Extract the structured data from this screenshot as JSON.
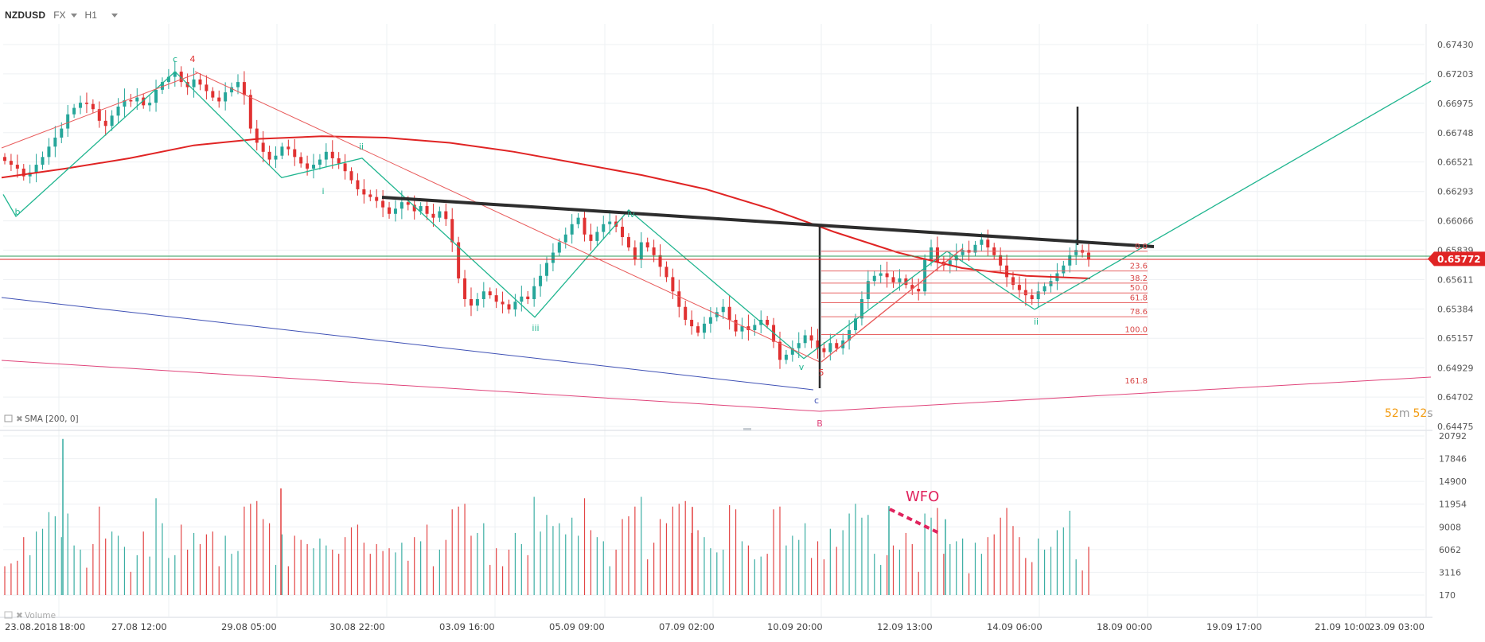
{
  "toolbar": {
    "symbol": "NZDUSD",
    "exchange": "FX",
    "timeframe": "H1"
  },
  "indicators": {
    "sma_label": "SMA",
    "sma_params": "[200, 0]",
    "volume_label": "Volume"
  },
  "timer": {
    "minutes": "52",
    "m": "m",
    "seconds": "52",
    "s": "s"
  },
  "annotations": {
    "wfo": "WFO"
  },
  "colors": {
    "up": "#26a69a",
    "down": "#e03131",
    "sma": "#e02424",
    "neckline": "#2d2d2d",
    "teal_line": "#1fb58f",
    "blue_line": "#3f51b5",
    "pink_line": "#e0457b",
    "price_tag": "#e02424",
    "current_line": "#2e9b5a"
  },
  "chart_data": {
    "type": "candlestick",
    "main": {
      "y_ticks": [
        "0.67430",
        "0.67203",
        "0.66975",
        "0.66748",
        "0.66521",
        "0.66293",
        "0.66066",
        "0.65839",
        "0.65611",
        "0.65384",
        "0.65157",
        "0.64929",
        "0.64702",
        "0.64475"
      ],
      "current_price": "0.65772",
      "x_labels": [
        "23.08.2018",
        "18:00",
        "27.08 12:00",
        "29.08 05:00",
        "30.08 22:00",
        "03.09 16:00",
        "05.09 09:00",
        "07.09 02:00",
        "10.09 20:00",
        "12.09 13:00",
        "14.09 06:00",
        "18.09 00:00",
        "19.09 17:00",
        "21.09 10:00",
        "23.09 03:00"
      ],
      "candles": [
        {
          "c": 0.6653
        },
        {
          "c": 0.665
        },
        {
          "c": 0.6647
        },
        {
          "c": 0.6641
        },
        {
          "c": 0.6644
        },
        {
          "c": 0.665
        },
        {
          "c": 0.6656
        },
        {
          "c": 0.6664
        },
        {
          "c": 0.6671
        },
        {
          "c": 0.6678
        },
        {
          "c": 0.6689
        },
        {
          "c": 0.6694
        },
        {
          "c": 0.6698
        },
        {
          "c": 0.6697
        },
        {
          "c": 0.6693
        },
        {
          "c": 0.6684
        },
        {
          "c": 0.668
        },
        {
          "c": 0.6688
        },
        {
          "c": 0.6695
        },
        {
          "c": 0.67
        },
        {
          "c": 0.6699
        },
        {
          "c": 0.6702
        },
        {
          "c": 0.6696
        },
        {
          "c": 0.6698
        },
        {
          "c": 0.6708
        },
        {
          "c": 0.6714
        },
        {
          "c": 0.6718
        },
        {
          "c": 0.6722
        },
        {
          "c": 0.6714
        },
        {
          "c": 0.671
        },
        {
          "c": 0.6716
        },
        {
          "c": 0.6712
        },
        {
          "c": 0.6707
        },
        {
          "c": 0.6702
        },
        {
          "c": 0.6699
        },
        {
          "c": 0.6706
        },
        {
          "c": 0.671
        },
        {
          "c": 0.6714
        },
        {
          "c": 0.6704
        },
        {
          "c": 0.6678
        },
        {
          "c": 0.6667
        },
        {
          "c": 0.666
        },
        {
          "c": 0.6654
        },
        {
          "c": 0.6657
        },
        {
          "c": 0.6664
        },
        {
          "c": 0.6662
        },
        {
          "c": 0.6656
        },
        {
          "c": 0.6651
        },
        {
          "c": 0.6647
        },
        {
          "c": 0.665
        },
        {
          "c": 0.6654
        },
        {
          "c": 0.666
        },
        {
          "c": 0.6655
        },
        {
          "c": 0.6651
        },
        {
          "c": 0.6645
        },
        {
          "c": 0.6638
        },
        {
          "c": 0.6631
        },
        {
          "c": 0.6627
        },
        {
          "c": 0.6625
        },
        {
          "c": 0.6622
        },
        {
          "c": 0.6617
        },
        {
          "c": 0.6612
        },
        {
          "c": 0.6616
        },
        {
          "c": 0.6621
        },
        {
          "c": 0.6619
        },
        {
          "c": 0.6614
        },
        {
          "c": 0.6618
        },
        {
          "c": 0.6612
        },
        {
          "c": 0.6609
        },
        {
          "c": 0.6614
        },
        {
          "c": 0.6608
        },
        {
          "c": 0.659
        },
        {
          "c": 0.6562
        },
        {
          "c": 0.6546
        },
        {
          "c": 0.6541
        },
        {
          "c": 0.6546
        },
        {
          "c": 0.6552
        },
        {
          "c": 0.6549
        },
        {
          "c": 0.6544
        },
        {
          "c": 0.6542
        },
        {
          "c": 0.6538
        },
        {
          "c": 0.6544
        },
        {
          "c": 0.6548
        },
        {
          "c": 0.6546
        },
        {
          "c": 0.6556
        },
        {
          "c": 0.6564
        },
        {
          "c": 0.6574
        },
        {
          "c": 0.6582
        },
        {
          "c": 0.659
        },
        {
          "c": 0.6596
        },
        {
          "c": 0.6604
        },
        {
          "c": 0.6609
        },
        {
          "c": 0.6596
        },
        {
          "c": 0.6591
        },
        {
          "c": 0.6598
        },
        {
          "c": 0.6604
        },
        {
          "c": 0.6606
        },
        {
          "c": 0.6602
        },
        {
          "c": 0.6594
        },
        {
          "c": 0.6586
        },
        {
          "c": 0.6577
        },
        {
          "c": 0.659
        },
        {
          "c": 0.6586
        },
        {
          "c": 0.658
        },
        {
          "c": 0.6571
        },
        {
          "c": 0.6563
        },
        {
          "c": 0.6552
        },
        {
          "c": 0.654
        },
        {
          "c": 0.653
        },
        {
          "c": 0.6525
        },
        {
          "c": 0.652
        },
        {
          "c": 0.6527
        },
        {
          "c": 0.6532
        },
        {
          "c": 0.6536
        },
        {
          "c": 0.654
        },
        {
          "c": 0.653
        },
        {
          "c": 0.6521
        },
        {
          "c": 0.6525
        },
        {
          "c": 0.6522
        },
        {
          "c": 0.6526
        },
        {
          "c": 0.653
        },
        {
          "c": 0.6526
        },
        {
          "c": 0.6513
        },
        {
          "c": 0.6499
        },
        {
          "c": 0.6503
        },
        {
          "c": 0.6508
        },
        {
          "c": 0.6512
        },
        {
          "c": 0.6518
        },
        {
          "c": 0.6514
        },
        {
          "c": 0.6508
        },
        {
          "c": 0.6505
        },
        {
          "c": 0.6512
        },
        {
          "c": 0.6508
        },
        {
          "c": 0.6514
        },
        {
          "c": 0.6522
        },
        {
          "c": 0.6531
        },
        {
          "c": 0.6546
        },
        {
          "c": 0.656
        },
        {
          "c": 0.6564
        },
        {
          "c": 0.6566
        },
        {
          "c": 0.6563
        },
        {
          "c": 0.6559
        },
        {
          "c": 0.6562
        },
        {
          "c": 0.6557
        },
        {
          "c": 0.6554
        },
        {
          "c": 0.6552
        },
        {
          "c": 0.6577
        },
        {
          "c": 0.6586
        },
        {
          "c": 0.6575
        },
        {
          "c": 0.6572
        },
        {
          "c": 0.6576
        },
        {
          "c": 0.658
        },
        {
          "c": 0.6584
        },
        {
          "c": 0.6582
        },
        {
          "c": 0.6588
        },
        {
          "c": 0.6592
        },
        {
          "c": 0.6586
        },
        {
          "c": 0.658
        },
        {
          "c": 0.6572
        },
        {
          "c": 0.6563
        },
        {
          "c": 0.6557
        },
        {
          "c": 0.6553
        },
        {
          "c": 0.6549
        },
        {
          "c": 0.6546
        },
        {
          "c": 0.6552
        },
        {
          "c": 0.6556
        },
        {
          "c": 0.656
        },
        {
          "c": 0.6566
        },
        {
          "c": 0.6572
        },
        {
          "c": 0.658
        },
        {
          "c": 0.6584
        },
        {
          "c": 0.6582
        },
        {
          "c": 0.6577
        }
      ],
      "sma_200": [
        0.664,
        0.6647,
        0.6655,
        0.6665,
        0.667,
        0.6672,
        0.6671,
        0.6667,
        0.666,
        0.6651,
        0.6642,
        0.6631,
        0.6616,
        0.6598,
        0.6582,
        0.657,
        0.6564,
        0.6562
      ],
      "fibonacci": [
        {
          "level": "0.0",
          "price": 0.6583
        },
        {
          "level": "23.6",
          "price": 0.65678
        },
        {
          "level": "38.2",
          "price": 0.65584
        },
        {
          "level": "50.0",
          "price": 0.65508
        },
        {
          "level": "61.8",
          "price": 0.65432
        },
        {
          "level": "78.6",
          "price": 0.65324
        },
        {
          "level": "100.0",
          "price": 0.65186
        },
        {
          "level": "161.8",
          "price": 0.6479
        }
      ],
      "wave_labels": [
        {
          "text": "c",
          "color": "#1fb58f"
        },
        {
          "text": "4",
          "color": "#e03131"
        },
        {
          "text": "b",
          "color": "#1fb58f"
        },
        {
          "text": "i",
          "color": "#1fb58f"
        },
        {
          "text": "ii",
          "color": "#1fb58f"
        },
        {
          "text": "iii",
          "color": "#1fb58f"
        },
        {
          "text": "iv",
          "color": "#1fb58f"
        },
        {
          "text": "v",
          "color": "#1fb58f"
        },
        {
          "text": "5",
          "color": "#e03131"
        },
        {
          "text": "c",
          "color": "#3f51b5"
        },
        {
          "text": "B",
          "color": "#e0457b"
        },
        {
          "text": "ii",
          "color": "#1fb58f"
        }
      ]
    },
    "volume": {
      "y_ticks": [
        "20792",
        "17846",
        "14900",
        "11954",
        "9008",
        "6062",
        "3116",
        "170"
      ]
    }
  }
}
